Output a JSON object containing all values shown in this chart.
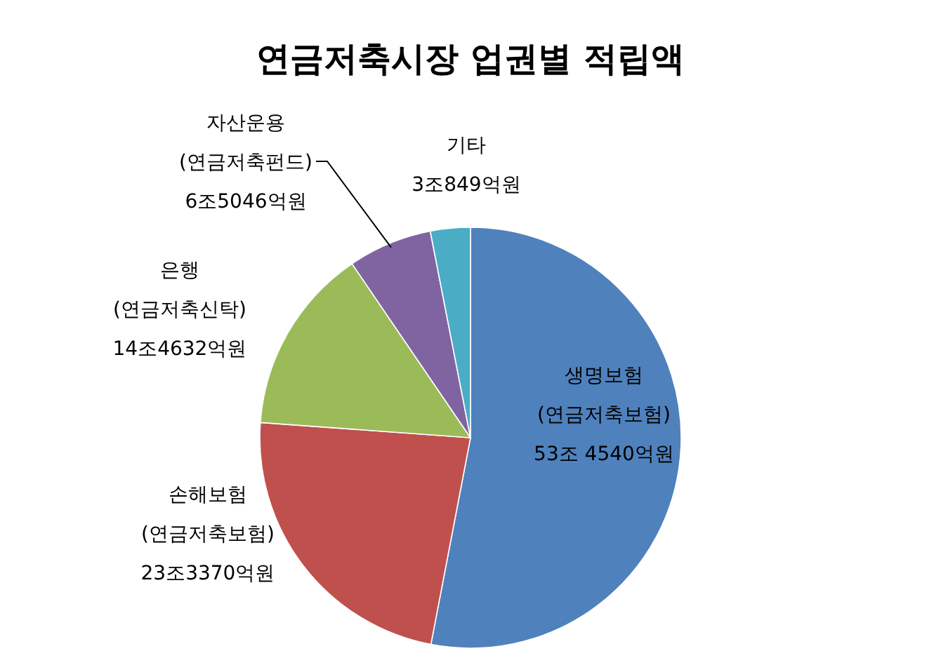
{
  "chart_data": {
    "type": "pie",
    "title": "연금저축시장 업권별 적립액",
    "categories": [
      "생명보험 (연금저축보험)",
      "손해보험 (연금저축보험)",
      "은행 (연금저축신탁)",
      "자산운용 (연금저축펀드)",
      "기타"
    ],
    "values": [
      53.01,
      23.14,
      14.34,
      6.45,
      3.06
    ],
    "value_labels": [
      "53조 4540억원",
      "23조3370억원",
      "14조4632억원",
      "6조5046억원",
      "3조849억원"
    ],
    "colors": [
      "#4f81bd",
      "#c0504d",
      "#9bbb59",
      "#8064a2",
      "#4bacc6"
    ]
  }
}
